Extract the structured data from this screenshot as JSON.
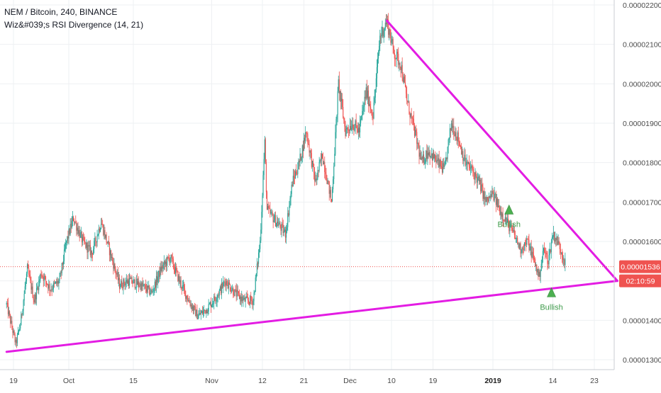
{
  "header": {
    "symbol_line": "NEM / Bitcoin, 240, BINANCE",
    "indicator_line": "Wiz&#039;s RSI Divergence (14, 21)"
  },
  "colors": {
    "up": "#26a69a",
    "down": "#ef5350",
    "trendline": "#e31ce3",
    "signal": "#4caf50",
    "price_badge": "#ef5350",
    "timer_badge": "#ef5350",
    "grid": "#eef0f3",
    "axis_text": "#4a4a4a"
  },
  "chart_data": {
    "type": "candlestick",
    "y_axis": {
      "min": 1.27e-05,
      "max": 2.23e-05,
      "ticks": [
        "0.00001300",
        "0.00001400",
        "0.00001500",
        "0.00001600",
        "0.00001700",
        "0.00001800",
        "0.00001900",
        "0.00002000",
        "0.00002100",
        "0.00002200"
      ]
    },
    "x_axis": {
      "ticks": [
        {
          "label": "19",
          "day": 0
        },
        {
          "label": "Oct",
          "day": 12
        },
        {
          "label": "15",
          "day": 26
        },
        {
          "label": "Nov",
          "day": 43
        },
        {
          "label": "12",
          "day": 54
        },
        {
          "label": "21",
          "day": 63
        },
        {
          "label": "Dec",
          "day": 73
        },
        {
          "label": "10",
          "day": 82
        },
        {
          "label": "19",
          "day": 91
        },
        {
          "label": "2019",
          "day": 104,
          "bold": true
        },
        {
          "label": "14",
          "day": 117
        },
        {
          "label": "23",
          "day": 126
        }
      ]
    },
    "price_path": [
      [
        -1.5,
        1.44e-05
      ],
      [
        0.5,
        1.34e-05
      ],
      [
        1.5,
        1.39e-05
      ],
      [
        3.0,
        1.53e-05
      ],
      [
        4.5,
        1.45e-05
      ],
      [
        6.0,
        1.52e-05
      ],
      [
        8.0,
        1.48e-05
      ],
      [
        10.0,
        1.5e-05
      ],
      [
        11.5,
        1.6e-05
      ],
      [
        13.0,
        1.66e-05
      ],
      [
        15.0,
        1.6e-05
      ],
      [
        17.0,
        1.57e-05
      ],
      [
        19.0,
        1.65e-05
      ],
      [
        21.5,
        1.55e-05
      ],
      [
        23.0,
        1.49e-05
      ],
      [
        25.0,
        1.5e-05
      ],
      [
        27.5,
        1.49e-05
      ],
      [
        30.0,
        1.47e-05
      ],
      [
        32.0,
        1.53e-05
      ],
      [
        34.0,
        1.56e-05
      ],
      [
        36.0,
        1.5e-05
      ],
      [
        38.0,
        1.45e-05
      ],
      [
        40.0,
        1.41e-05
      ],
      [
        42.0,
        1.43e-05
      ],
      [
        44.0,
        1.46e-05
      ],
      [
        46.0,
        1.5e-05
      ],
      [
        48.0,
        1.47e-05
      ],
      [
        50.0,
        1.45e-05
      ],
      [
        52.0,
        1.45e-05
      ],
      [
        53.5,
        1.6e-05
      ],
      [
        54.5,
        1.85e-05
      ],
      [
        55.0,
        1.68e-05
      ],
      [
        57.0,
        1.65e-05
      ],
      [
        59.0,
        1.62e-05
      ],
      [
        60.5,
        1.75e-05
      ],
      [
        62.0,
        1.8e-05
      ],
      [
        63.5,
        1.88e-05
      ],
      [
        65.5,
        1.75e-05
      ],
      [
        67.0,
        1.82e-05
      ],
      [
        69.0,
        1.7e-05
      ],
      [
        70.5,
        2e-05
      ],
      [
        72.0,
        1.88e-05
      ],
      [
        73.5,
        1.9e-05
      ],
      [
        75.0,
        1.88e-05
      ],
      [
        76.5,
        1.98e-05
      ],
      [
        78.0,
        1.92e-05
      ],
      [
        79.5,
        2.12e-05
      ],
      [
        81.0,
        2.16e-05
      ],
      [
        82.5,
        2.08e-05
      ],
      [
        84.0,
        2.05e-05
      ],
      [
        85.5,
        1.95e-05
      ],
      [
        87.0,
        1.88e-05
      ],
      [
        88.5,
        1.8e-05
      ],
      [
        90.0,
        1.83e-05
      ],
      [
        92.0,
        1.8e-05
      ],
      [
        93.5,
        1.78e-05
      ],
      [
        95.0,
        1.9e-05
      ],
      [
        96.5,
        1.86e-05
      ],
      [
        98.0,
        1.8e-05
      ],
      [
        99.5,
        1.78e-05
      ],
      [
        101.0,
        1.75e-05
      ],
      [
        102.5,
        1.7e-05
      ],
      [
        104.0,
        1.72e-05
      ],
      [
        105.5,
        1.68e-05
      ],
      [
        107.0,
        1.65e-05
      ],
      [
        108.5,
        1.62e-05
      ],
      [
        110.0,
        1.58e-05
      ],
      [
        111.5,
        1.6e-05
      ],
      [
        113.0,
        1.55e-05
      ],
      [
        114.0,
        1.51e-05
      ],
      [
        115.0,
        1.58e-05
      ],
      [
        116.0,
        1.55e-05
      ],
      [
        117.0,
        1.62e-05
      ],
      [
        118.0,
        1.6e-05
      ],
      [
        119.0,
        1.57e-05
      ],
      [
        119.8,
        1.54e-05
      ]
    ],
    "current_price": {
      "value": 1.536e-05,
      "label": "0.00001536"
    },
    "timer": {
      "label": "02:10:59"
    },
    "trendlines": [
      {
        "name": "lower-support",
        "from": [
          -1.5,
          1.32e-05
        ],
        "to": [
          131,
          1.5e-05
        ]
      },
      {
        "name": "upper-resistance",
        "from": [
          81,
          2.16e-05
        ],
        "to": [
          131,
          1.5e-05
        ]
      }
    ],
    "signals": [
      {
        "label": "Bullish",
        "day": 107.5,
        "price": 1.68e-05
      },
      {
        "label": "Bullish",
        "day": 116.7,
        "price": 1.47e-05
      }
    ]
  }
}
